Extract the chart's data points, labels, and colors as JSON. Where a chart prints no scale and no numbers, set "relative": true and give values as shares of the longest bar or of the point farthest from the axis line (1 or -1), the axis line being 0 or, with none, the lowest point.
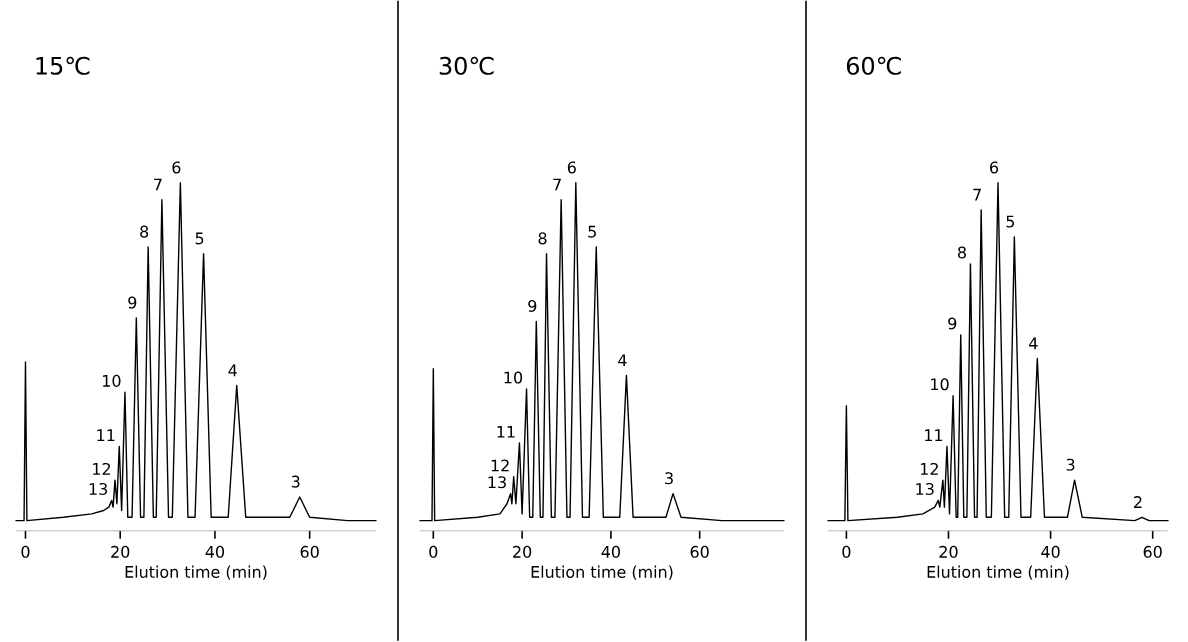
{
  "chart_data": [
    {
      "type": "line",
      "title": "15℃",
      "xlabel": "Elution time (min)",
      "relative": true,
      "xlim": [
        -2,
        74
      ],
      "xticks": [
        0,
        20,
        40,
        60
      ],
      "x": [
        -2,
        -0.3,
        0,
        0.3,
        8,
        14,
        16.5,
        17.6,
        18.2,
        18.5,
        18.9,
        19.3,
        19.8,
        20.3,
        21.0,
        21.6,
        22.5,
        23.4,
        24.3,
        25.0,
        25.9,
        27.0,
        27.6,
        28.8,
        30.2,
        31.0,
        32.7,
        34.3,
        35.8,
        37.6,
        39.2,
        42.8,
        44.6,
        46.5,
        55.8,
        57.9,
        60,
        68,
        74
      ],
      "series": [
        {
          "color": "#000000",
          "values": [
            0,
            0,
            0.47,
            0,
            0.01,
            0.02,
            0.03,
            0.04,
            0.06,
            0.04,
            0.12,
            0.05,
            0.22,
            0.03,
            0.38,
            0.01,
            0.01,
            0.6,
            0.01,
            0.01,
            0.81,
            0.01,
            0.01,
            0.95,
            0.01,
            0.01,
            1.0,
            0.01,
            0.01,
            0.79,
            0.01,
            0.01,
            0.4,
            0.01,
            0.01,
            0.07,
            0.01,
            0,
            0
          ]
        }
      ],
      "annotations": [
        {
          "text": "13",
          "x": 18.2,
          "y": 0.06
        },
        {
          "text": "12",
          "x": 18.9,
          "y": 0.12
        },
        {
          "text": "11",
          "x": 19.8,
          "y": 0.22
        },
        {
          "text": "10",
          "x": 21.0,
          "y": 0.38
        },
        {
          "text": "9",
          "x": 23.4,
          "y": 0.6
        },
        {
          "text": "8",
          "x": 25.9,
          "y": 0.81
        },
        {
          "text": "7",
          "x": 28.8,
          "y": 0.95
        },
        {
          "text": "6",
          "x": 32.7,
          "y": 1.0
        },
        {
          "text": "5",
          "x": 37.6,
          "y": 0.79
        },
        {
          "text": "4",
          "x": 44.6,
          "y": 0.4
        },
        {
          "text": "3",
          "x": 57.9,
          "y": 0.07
        }
      ]
    },
    {
      "type": "line",
      "title": "30℃",
      "xlabel": "Elution time (min)",
      "relative": true,
      "xlim": [
        -3,
        79
      ],
      "xticks": [
        0,
        20,
        40,
        60
      ],
      "x": [
        -3,
        -0.3,
        0,
        0.3,
        10,
        15,
        16.6,
        17.4,
        17.7,
        18.1,
        18.6,
        19.4,
        20.0,
        21.0,
        21.7,
        22.4,
        23.2,
        24.1,
        24.7,
        25.5,
        26.6,
        27.4,
        28.8,
        30.1,
        30.8,
        32.1,
        33.6,
        35.1,
        36.7,
        38.3,
        42.0,
        43.5,
        45.0,
        52.4,
        54.0,
        55.8,
        65,
        79
      ],
      "series": [
        {
          "color": "#000000",
          "values": [
            0,
            0,
            0.45,
            0,
            0.01,
            0.02,
            0.05,
            0.08,
            0.05,
            0.13,
            0.05,
            0.23,
            0.02,
            0.39,
            0.01,
            0.01,
            0.59,
            0.01,
            0.01,
            0.79,
            0.01,
            0.01,
            0.95,
            0.01,
            0.01,
            1.0,
            0.01,
            0.01,
            0.81,
            0.01,
            0.01,
            0.43,
            0.01,
            0.01,
            0.08,
            0.01,
            0,
            0
          ]
        }
      ],
      "annotations": [
        {
          "text": "13",
          "x": 17.4,
          "y": 0.08
        },
        {
          "text": "12",
          "x": 18.1,
          "y": 0.13
        },
        {
          "text": "11",
          "x": 19.4,
          "y": 0.23
        },
        {
          "text": "10",
          "x": 21.0,
          "y": 0.39
        },
        {
          "text": "9",
          "x": 23.2,
          "y": 0.59
        },
        {
          "text": "8",
          "x": 25.5,
          "y": 0.79
        },
        {
          "text": "7",
          "x": 28.8,
          "y": 0.95
        },
        {
          "text": "6",
          "x": 32.1,
          "y": 1.0
        },
        {
          "text": "5",
          "x": 36.7,
          "y": 0.81
        },
        {
          "text": "4",
          "x": 43.5,
          "y": 0.43
        },
        {
          "text": "3",
          "x": 54.0,
          "y": 0.08
        }
      ]
    },
    {
      "type": "line",
      "title": "60℃",
      "xlabel": "Elution time (min)",
      "relative": true,
      "xlim": [
        -3.6,
        63
      ],
      "xticks": [
        0,
        20,
        40,
        60
      ],
      "x": [
        -3.6,
        -0.3,
        0,
        0.3,
        10,
        15,
        17.3,
        18.0,
        18.3,
        18.9,
        19.2,
        19.7,
        20.2,
        20.9,
        21.5,
        21.8,
        22.4,
        23.0,
        23.6,
        24.3,
        25.1,
        25.6,
        26.4,
        27.4,
        28.4,
        29.7,
        31.0,
        31.8,
        32.9,
        34.2,
        36.1,
        37.4,
        38.8,
        43.3,
        44.7,
        46.2,
        56.5,
        57.9,
        59.3,
        63
      ],
      "series": [
        {
          "color": "#000000",
          "values": [
            0,
            0,
            0.34,
            0,
            0.01,
            0.02,
            0.04,
            0.06,
            0.04,
            0.12,
            0.04,
            0.22,
            0.02,
            0.37,
            0.01,
            0.01,
            0.55,
            0.01,
            0.01,
            0.76,
            0.01,
            0.01,
            0.92,
            0.01,
            0.01,
            1.0,
            0.01,
            0.01,
            0.84,
            0.01,
            0.01,
            0.48,
            0.01,
            0.01,
            0.12,
            0.01,
            0,
            0.01,
            0,
            0
          ]
        }
      ],
      "annotations": [
        {
          "text": "13",
          "x": 18.0,
          "y": 0.06
        },
        {
          "text": "12",
          "x": 18.9,
          "y": 0.12
        },
        {
          "text": "11",
          "x": 19.7,
          "y": 0.22
        },
        {
          "text": "10",
          "x": 20.9,
          "y": 0.37
        },
        {
          "text": "9",
          "x": 22.4,
          "y": 0.55
        },
        {
          "text": "8",
          "x": 24.3,
          "y": 0.76
        },
        {
          "text": "7",
          "x": 26.4,
          "y": 0.92
        },
        {
          "text": "6",
          "x": 29.7,
          "y": 1.0
        },
        {
          "text": "5",
          "x": 32.9,
          "y": 0.84
        },
        {
          "text": "4",
          "x": 37.4,
          "y": 0.48
        },
        {
          "text": "3",
          "x": 44.7,
          "y": 0.12
        },
        {
          "text": "2",
          "x": 57.9,
          "y": 0.01
        }
      ]
    }
  ]
}
